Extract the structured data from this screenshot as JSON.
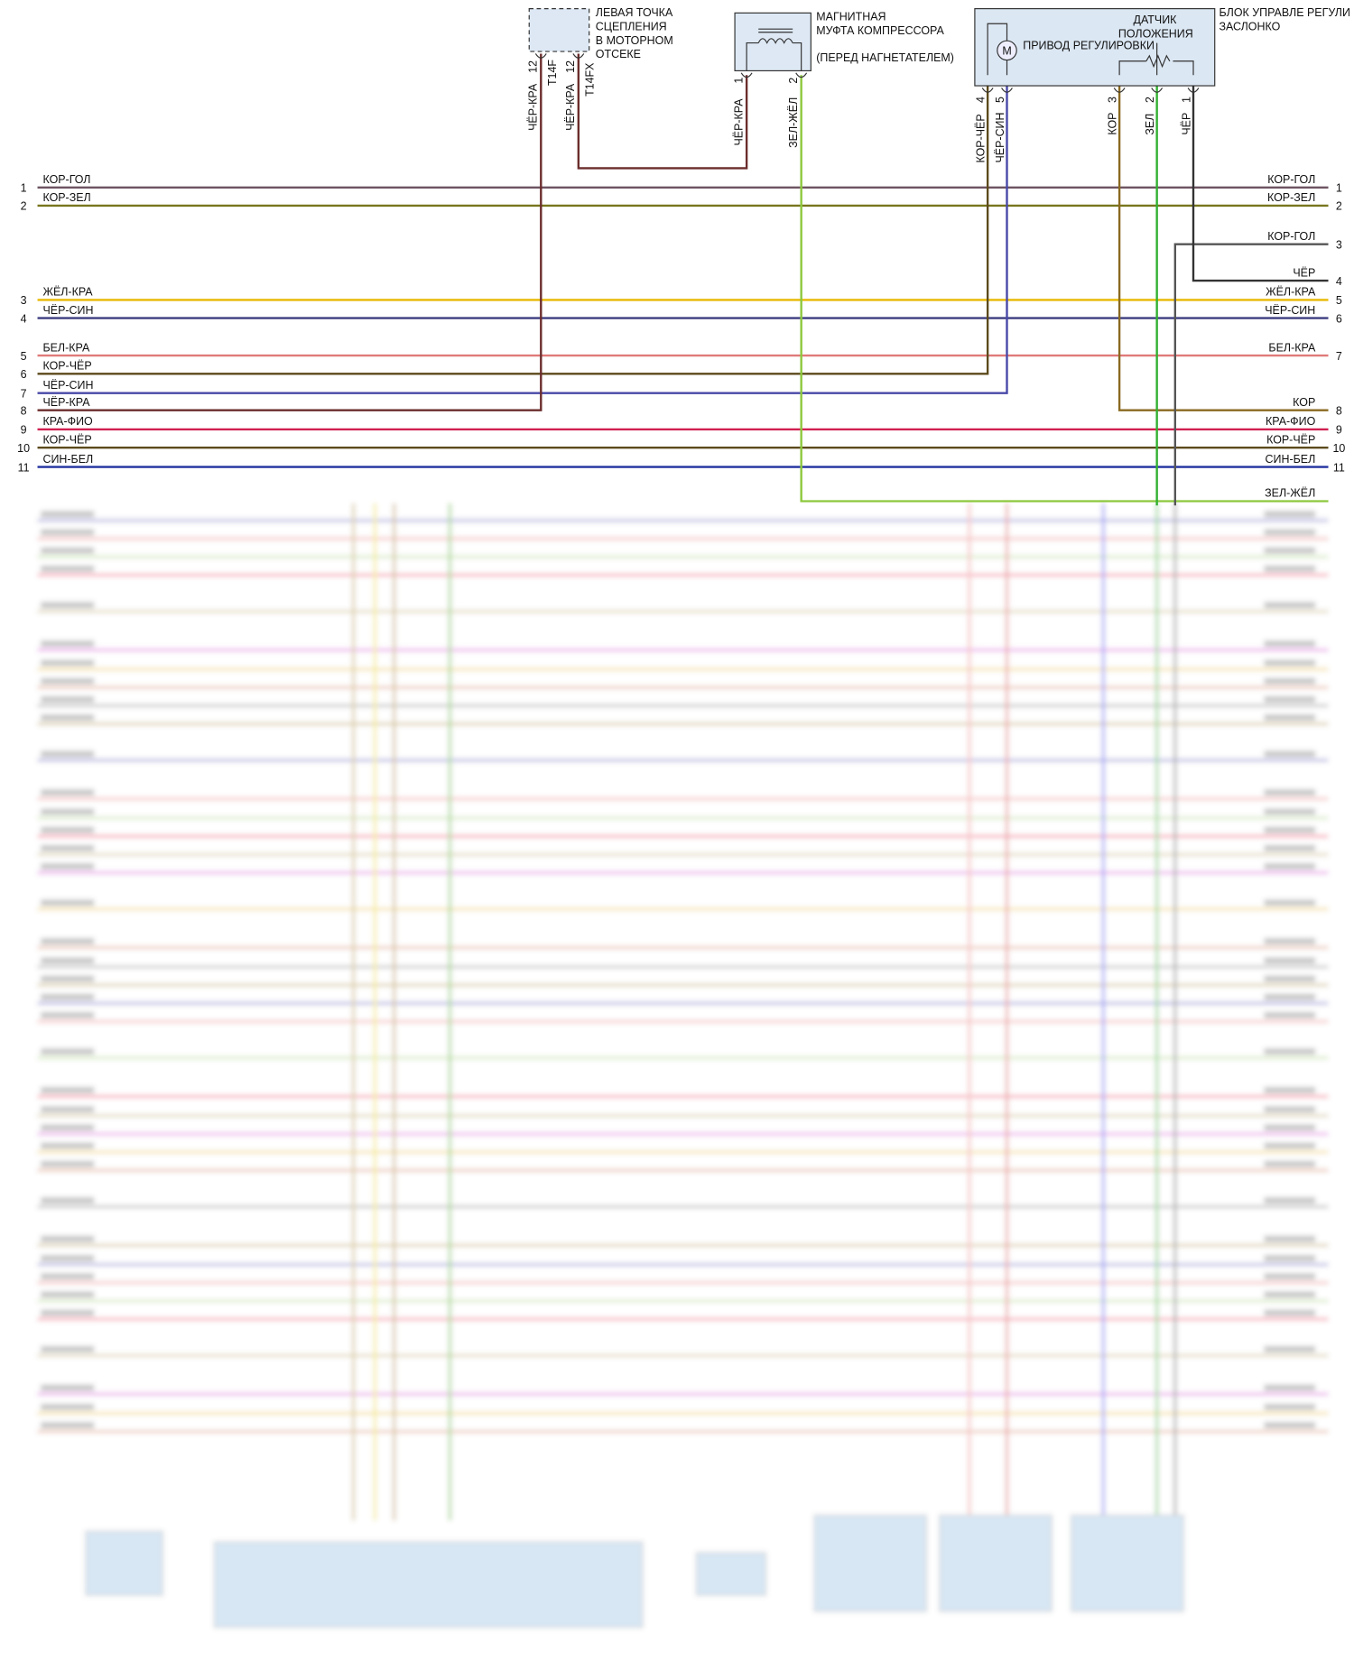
{
  "components": [
    {
      "label": [
        "ЛЕВАЯ ТОЧКА",
        "СЦЕПЛЕНИЯ",
        "В МОТОРНОМ",
        "ОТСЕКЕ"
      ],
      "pins": [
        {
          "num": 12,
          "connector": "T14F",
          "wire": "ЧЁР-КРА"
        },
        {
          "num": 12,
          "connector": "T14FX",
          "wire": "ЧЁР-КРА"
        }
      ]
    },
    {
      "label": [
        "МАГНИТНАЯ",
        "МУФТА КОМПРЕССОРА",
        "(ПЕРЕД НАГНЕТАТЕЛЕМ)"
      ],
      "pins": [
        {
          "num": 1,
          "wire": "ЧЁР-КРА"
        },
        {
          "num": 2,
          "wire": "ЗЕЛ-ЖЁЛ"
        }
      ]
    },
    {
      "label": [
        "БЛОК УПРАВЛЕ РЕГУЛИ",
        "ЗАСЛОНКО"
      ],
      "motor": "M",
      "actuator": "ПРИВОД РЕГУЛИРОВКИ",
      "sensor": [
        "ДАТЧИК",
        "ПОЛОЖЕНИЯ"
      ],
      "pins": [
        {
          "num": 4,
          "wire": "КОР-ЧЁР"
        },
        {
          "num": 5,
          "wire": "ЧЁР-СИН"
        },
        {
          "num": 3,
          "wire": "КОР"
        },
        {
          "num": 2,
          "wire": "ЗЕЛ"
        },
        {
          "num": 1,
          "wire": "ЧЁР"
        }
      ]
    }
  ],
  "left": [
    {
      "num": 1,
      "label": "КОР-ГОЛ"
    },
    {
      "num": 2,
      "label": "КОР-ЗЕЛ"
    },
    {
      "num": 3,
      "label": "ЖЁЛ-КРА"
    },
    {
      "num": 4,
      "label": "ЧЁР-СИН"
    },
    {
      "num": 5,
      "label": "БЕЛ-КРА"
    },
    {
      "num": 6,
      "label": "КОР-ЧЁР"
    },
    {
      "num": 7,
      "label": "ЧЁР-СИН"
    },
    {
      "num": 8,
      "label": "ЧЁР-КРА"
    },
    {
      "num": 9,
      "label": "КРА-ФИО"
    },
    {
      "num": 10,
      "label": "КОР-ЧЁР"
    },
    {
      "num": 11,
      "label": "СИН-БЕЛ"
    }
  ],
  "right": [
    {
      "num": 1,
      "label": "КОР-ГОЛ"
    },
    {
      "num": 2,
      "label": "КОР-ЗЕЛ"
    },
    {
      "num": 3,
      "label": "КОР-ГОЛ"
    },
    {
      "num": 4,
      "label": "ЧЁР"
    },
    {
      "num": 5,
      "label": "ЖЁЛ-КРА"
    },
    {
      "num": 6,
      "label": "ЧЁР-СИН"
    },
    {
      "num": 7,
      "label": "БЕЛ-КРА"
    },
    {
      "num": 8,
      "label": "КОР"
    },
    {
      "num": 9,
      "label": "КРА-ФИО"
    },
    {
      "num": 10,
      "label": "КОР-ЧЁР"
    },
    {
      "num": 11,
      "label": "СИН-БЕЛ"
    },
    {
      "label": "ЗЕЛ-ЖЁЛ"
    }
  ]
}
